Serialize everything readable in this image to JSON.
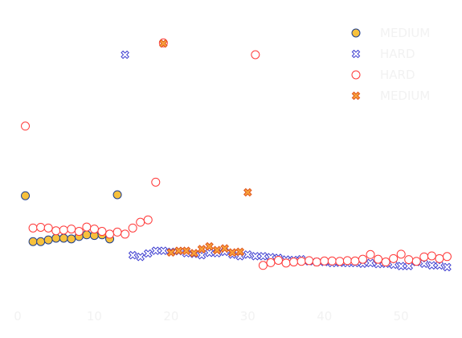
{
  "chart_data": {
    "type": "scatter",
    "title": "",
    "xlabel": "",
    "ylabel": "",
    "xlim": [
      0,
      57
    ],
    "ylim": [
      1.2,
      9.3
    ],
    "x_ticks": [
      "0",
      "10",
      "20",
      "30",
      "40",
      "50"
    ],
    "x_tick_values": [
      0,
      10,
      20,
      30,
      40,
      50
    ],
    "show_y_axis": false,
    "grid": false,
    "legend": {
      "placement": "top-right",
      "entries": [
        {
          "label": "MEDIUM",
          "series": 0
        },
        {
          "label": "HARD",
          "series": 1
        },
        {
          "label": "HARD",
          "series": 2
        },
        {
          "label": "MEDIUM",
          "series": 3
        }
      ]
    },
    "series": [
      {
        "name": "MEDIUM",
        "marker": "circle",
        "fill": "#f7c13c",
        "edge": "#1f3f8f",
        "points": [
          [
            1,
            4.25
          ],
          [
            2,
            2.9
          ],
          [
            3,
            2.9
          ],
          [
            4,
            2.95
          ],
          [
            5,
            3.0
          ],
          [
            6,
            3.0
          ],
          [
            7,
            2.98
          ],
          [
            8,
            3.05
          ],
          [
            9,
            3.1
          ],
          [
            10,
            3.08
          ],
          [
            11,
            3.1
          ],
          [
            12,
            2.98
          ],
          [
            13,
            4.28
          ]
        ]
      },
      {
        "name": "HARD",
        "marker": "x",
        "fill": "#ffffff",
        "edge": "#4040d0",
        "points": [
          [
            14,
            8.4
          ],
          [
            15,
            2.5
          ],
          [
            16,
            2.45
          ],
          [
            17,
            2.55
          ],
          [
            18,
            2.63
          ],
          [
            19,
            2.63
          ],
          [
            20,
            2.6
          ],
          [
            21,
            2.62
          ],
          [
            22,
            2.56
          ],
          [
            23,
            2.54
          ],
          [
            24,
            2.5
          ],
          [
            25,
            2.57
          ],
          [
            26,
            2.56
          ],
          [
            27,
            2.6
          ],
          [
            28,
            2.52
          ],
          [
            29,
            2.47
          ],
          [
            30,
            2.52
          ],
          [
            31,
            2.47
          ],
          [
            32,
            2.47
          ],
          [
            33,
            2.44
          ],
          [
            34,
            2.42
          ],
          [
            35,
            2.37
          ],
          [
            36,
            2.36
          ],
          [
            37,
            2.38
          ],
          [
            38,
            2.32
          ],
          [
            39,
            2.3
          ],
          [
            40,
            2.3
          ],
          [
            41,
            2.27
          ],
          [
            42,
            2.28
          ],
          [
            43,
            2.27
          ],
          [
            44,
            2.27
          ],
          [
            45,
            2.25
          ],
          [
            46,
            2.27
          ],
          [
            47,
            2.24
          ],
          [
            48,
            2.25
          ],
          [
            49,
            2.22
          ],
          [
            50,
            2.18
          ],
          [
            51,
            2.18
          ],
          [
            52,
            2.3
          ],
          [
            53,
            2.25
          ],
          [
            54,
            2.2
          ],
          [
            55,
            2.2
          ],
          [
            56,
            2.15
          ]
        ]
      },
      {
        "name": "HARD",
        "marker": "circle",
        "fill": "#ffffff",
        "edge": "#ff3a3a",
        "points": [
          [
            1,
            6.3
          ],
          [
            2,
            3.3
          ],
          [
            3,
            3.32
          ],
          [
            4,
            3.3
          ],
          [
            5,
            3.22
          ],
          [
            6,
            3.24
          ],
          [
            7,
            3.27
          ],
          [
            8,
            3.2
          ],
          [
            9,
            3.33
          ],
          [
            10,
            3.27
          ],
          [
            11,
            3.2
          ],
          [
            12,
            3.12
          ],
          [
            13,
            3.18
          ],
          [
            14,
            3.12
          ],
          [
            15,
            3.3
          ],
          [
            16,
            3.47
          ],
          [
            17,
            3.54
          ],
          [
            18,
            4.65
          ],
          [
            19,
            8.75
          ],
          [
            31,
            8.4
          ],
          [
            32,
            2.2
          ],
          [
            33,
            2.28
          ],
          [
            34,
            2.35
          ],
          [
            35,
            2.27
          ],
          [
            36,
            2.3
          ],
          [
            37,
            2.32
          ],
          [
            38,
            2.34
          ],
          [
            39,
            2.3
          ],
          [
            40,
            2.33
          ],
          [
            41,
            2.33
          ],
          [
            42,
            2.32
          ],
          [
            43,
            2.34
          ],
          [
            44,
            2.33
          ],
          [
            45,
            2.38
          ],
          [
            46,
            2.52
          ],
          [
            47,
            2.38
          ],
          [
            48,
            2.3
          ],
          [
            49,
            2.4
          ],
          [
            50,
            2.53
          ],
          [
            51,
            2.37
          ],
          [
            52,
            2.32
          ],
          [
            53,
            2.45
          ],
          [
            54,
            2.48
          ],
          [
            55,
            2.4
          ],
          [
            56,
            2.46
          ]
        ]
      },
      {
        "name": "MEDIUM",
        "marker": "x",
        "fill": "#f7a33c",
        "edge": "#e0541c",
        "points": [
          [
            19,
            8.73
          ],
          [
            20,
            2.58
          ],
          [
            21,
            2.63
          ],
          [
            22,
            2.63
          ],
          [
            23,
            2.56
          ],
          [
            24,
            2.68
          ],
          [
            25,
            2.76
          ],
          [
            26,
            2.65
          ],
          [
            27,
            2.7
          ],
          [
            28,
            2.58
          ],
          [
            29,
            2.6
          ],
          [
            30,
            4.35
          ]
        ]
      }
    ]
  }
}
